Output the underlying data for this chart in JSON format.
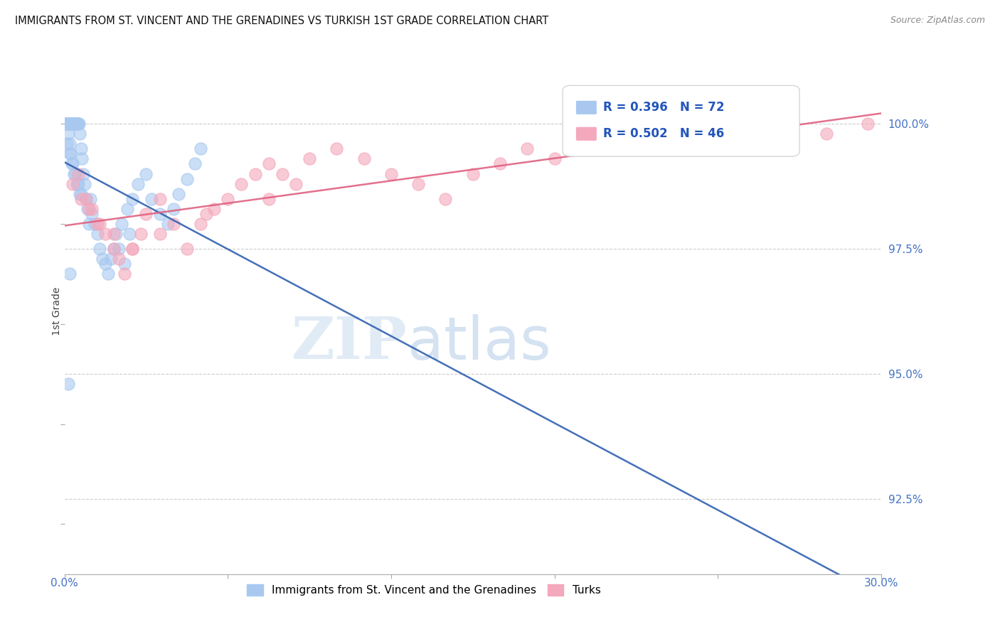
{
  "title": "IMMIGRANTS FROM ST. VINCENT AND THE GRENADINES VS TURKISH 1ST GRADE CORRELATION CHART",
  "source": "Source: ZipAtlas.com",
  "ylabel": "1st Grade",
  "yticks": [
    92.5,
    95.0,
    97.5,
    100.0
  ],
  "ytick_labels": [
    "92.5%",
    "95.0%",
    "97.5%",
    "100.0%"
  ],
  "xmin": 0.0,
  "xmax": 30.0,
  "ymin": 91.0,
  "ymax": 101.5,
  "legend_blue_label": "Immigrants from St. Vincent and the Grenadines",
  "legend_pink_label": "Turks",
  "blue_R": 0.396,
  "blue_N": 72,
  "pink_R": 0.502,
  "pink_N": 46,
  "blue_color": "#A8C8F0",
  "pink_color": "#F4A8BC",
  "blue_edge_color": "#7099CC",
  "pink_edge_color": "#CC7090",
  "blue_line_color": "#3060B0",
  "pink_line_color": "#E06080",
  "grid_color": "#CCCCCC",
  "watermark_zip_color": "#C8DCF0",
  "watermark_atlas_color": "#A0C0E0",
  "blue_x": [
    0.05,
    0.1,
    0.12,
    0.15,
    0.18,
    0.2,
    0.22,
    0.25,
    0.28,
    0.3,
    0.32,
    0.35,
    0.38,
    0.4,
    0.42,
    0.45,
    0.48,
    0.5,
    0.52,
    0.55,
    0.6,
    0.65,
    0.7,
    0.75,
    0.8,
    0.85,
    0.9,
    0.95,
    1.0,
    1.1,
    1.2,
    1.3,
    1.4,
    1.5,
    1.6,
    1.7,
    1.8,
    1.9,
    2.0,
    2.1,
    2.2,
    2.3,
    2.4,
    2.5,
    2.7,
    3.0,
    3.2,
    3.5,
    3.8,
    4.0,
    4.2,
    4.5,
    4.8,
    5.0,
    0.1,
    0.2,
    0.3,
    0.4,
    0.5,
    0.6,
    0.05,
    0.08,
    0.12,
    0.15,
    0.18,
    0.22,
    0.28,
    0.35,
    0.45,
    0.55,
    0.2,
    0.15
  ],
  "blue_y": [
    100.0,
    100.0,
    100.0,
    100.0,
    100.0,
    100.0,
    100.0,
    100.0,
    100.0,
    100.0,
    100.0,
    100.0,
    100.0,
    100.0,
    100.0,
    100.0,
    100.0,
    100.0,
    100.0,
    99.8,
    99.5,
    99.3,
    99.0,
    98.8,
    98.5,
    98.3,
    98.0,
    98.5,
    98.2,
    98.0,
    97.8,
    97.5,
    97.3,
    97.2,
    97.0,
    97.3,
    97.5,
    97.8,
    97.5,
    98.0,
    97.2,
    98.3,
    97.8,
    98.5,
    98.8,
    99.0,
    98.5,
    98.2,
    98.0,
    98.3,
    98.6,
    98.9,
    99.2,
    99.5,
    99.6,
    99.4,
    99.2,
    99.0,
    98.8,
    98.6,
    100.0,
    100.0,
    100.0,
    99.8,
    99.6,
    99.4,
    99.2,
    99.0,
    98.8,
    98.6,
    97.0,
    94.8
  ],
  "pink_x": [
    0.5,
    0.8,
    1.0,
    1.2,
    1.5,
    1.8,
    2.0,
    2.2,
    2.5,
    2.8,
    3.0,
    3.5,
    4.0,
    4.5,
    5.0,
    5.5,
    6.0,
    6.5,
    7.0,
    7.5,
    8.0,
    8.5,
    9.0,
    10.0,
    11.0,
    12.0,
    13.0,
    14.0,
    15.0,
    16.0,
    17.0,
    18.0,
    20.0,
    22.0,
    25.0,
    28.0,
    29.5,
    0.3,
    0.6,
    0.9,
    1.3,
    1.8,
    2.5,
    3.5,
    5.2,
    7.5
  ],
  "pink_y": [
    99.0,
    98.5,
    98.3,
    98.0,
    97.8,
    97.5,
    97.3,
    97.0,
    97.5,
    97.8,
    98.2,
    98.5,
    98.0,
    97.5,
    98.0,
    98.3,
    98.5,
    98.8,
    99.0,
    99.2,
    99.0,
    98.8,
    99.3,
    99.5,
    99.3,
    99.0,
    98.8,
    98.5,
    99.0,
    99.2,
    99.5,
    99.3,
    99.5,
    99.8,
    99.5,
    99.8,
    100.0,
    98.8,
    98.5,
    98.3,
    98.0,
    97.8,
    97.5,
    97.8,
    98.2,
    98.5
  ]
}
